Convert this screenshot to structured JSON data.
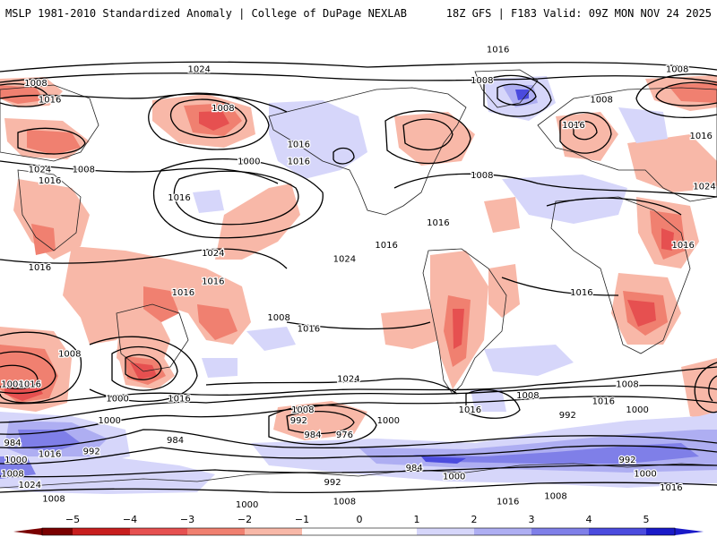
{
  "header": {
    "title_left": "MSLP 1981-2010 Standardized Anomaly | College of DuPage NEXLAB",
    "title_right": "18Z GFS | F183 Valid: 09Z MON NOV 24 2025"
  },
  "map": {
    "contour_unit": "hPa",
    "isobar_labels": [
      {
        "value": "1016",
        "lon": 70,
        "lat": 80
      },
      {
        "value": "1024",
        "lon": -80,
        "lat": 73
      },
      {
        "value": "1008",
        "lon": -162,
        "lat": 68
      },
      {
        "value": "1016",
        "lon": -155,
        "lat": 62
      },
      {
        "value": "1008",
        "lon": -68,
        "lat": 59
      },
      {
        "value": "1000",
        "lon": -55,
        "lat": 40
      },
      {
        "value": "1016",
        "lon": -30,
        "lat": 46
      },
      {
        "value": "1016",
        "lon": -30,
        "lat": 40
      },
      {
        "value": "1016",
        "lon": -90,
        "lat": 27
      },
      {
        "value": "1024",
        "lon": -160,
        "lat": 37
      },
      {
        "value": "1008",
        "lon": -138,
        "lat": 37
      },
      {
        "value": "1016",
        "lon": -155,
        "lat": 33
      },
      {
        "value": "1016",
        "lon": -160,
        "lat": 2
      },
      {
        "value": "1024",
        "lon": -73,
        "lat": 7
      },
      {
        "value": "1016",
        "lon": -73,
        "lat": -3
      },
      {
        "value": "1024",
        "lon": -7,
        "lat": 5
      },
      {
        "value": "1016",
        "lon": 14,
        "lat": 10
      },
      {
        "value": "1016",
        "lon": 40,
        "lat": 18
      },
      {
        "value": "1008",
        "lon": 62,
        "lat": 35
      },
      {
        "value": "1016",
        "lon": 108,
        "lat": 53
      },
      {
        "value": "1008",
        "lon": 122,
        "lat": 62
      },
      {
        "value": "1008",
        "lon": 160,
        "lat": 73
      },
      {
        "value": "1016",
        "lon": 172,
        "lat": 49
      },
      {
        "value": "1024",
        "lon": 175,
        "lat": 31
      },
      {
        "value": "1016",
        "lon": 163,
        "lat": 10
      },
      {
        "value": "1008",
        "lon": 62,
        "lat": 69
      },
      {
        "value": "1016",
        "lon": 112,
        "lat": -7
      },
      {
        "value": "1008",
        "lon": -40,
        "lat": -16
      },
      {
        "value": "1016",
        "lon": -88,
        "lat": -7
      },
      {
        "value": "1016",
        "lon": -25,
        "lat": -20
      },
      {
        "value": "1008",
        "lon": -145,
        "lat": -29
      },
      {
        "value": "1008",
        "lon": -180,
        "lat": -40
      },
      {
        "value": "1016",
        "lon": -165,
        "lat": -40
      },
      {
        "value": "1000",
        "lon": -121,
        "lat": -45
      },
      {
        "value": "1016",
        "lon": -90,
        "lat": -45
      },
      {
        "value": "1008",
        "lon": -28,
        "lat": -49
      },
      {
        "value": "1024",
        "lon": -5,
        "lat": -38
      },
      {
        "value": "992",
        "lon": -30,
        "lat": -53
      },
      {
        "value": "1000",
        "lon": -125,
        "lat": -53
      },
      {
        "value": "1000",
        "lon": 15,
        "lat": -53
      },
      {
        "value": "1016",
        "lon": 56,
        "lat": -49
      },
      {
        "value": "1008",
        "lon": 85,
        "lat": -44
      },
      {
        "value": "1016",
        "lon": 123,
        "lat": -46
      },
      {
        "value": "1008",
        "lon": 135,
        "lat": -40
      },
      {
        "value": "1000",
        "lon": 140,
        "lat": -49
      },
      {
        "value": "992",
        "lon": 105,
        "lat": -51
      },
      {
        "value": "984",
        "lon": -178,
        "lat": -61
      },
      {
        "value": "1000",
        "lon": -172,
        "lat": -67
      },
      {
        "value": "1008",
        "lon": -177,
        "lat": -72
      },
      {
        "value": "1016",
        "lon": -155,
        "lat": -65
      },
      {
        "value": "1024",
        "lon": -165,
        "lat": -76
      },
      {
        "value": "1008",
        "lon": -153,
        "lat": -81
      },
      {
        "value": "992",
        "lon": -134,
        "lat": -64
      },
      {
        "value": "984",
        "lon": -92,
        "lat": -60
      },
      {
        "value": "984",
        "lon": -23,
        "lat": -58
      },
      {
        "value": "976",
        "lon": -7,
        "lat": -58
      },
      {
        "value": "992",
        "lon": -13,
        "lat": -75
      },
      {
        "value": "984",
        "lon": 28,
        "lat": -70
      },
      {
        "value": "1000",
        "lon": 48,
        "lat": -73
      },
      {
        "value": "1000",
        "lon": -56,
        "lat": -83
      },
      {
        "value": "1008",
        "lon": -7,
        "lat": -82
      },
      {
        "value": "1016",
        "lon": 75,
        "lat": -82
      },
      {
        "value": "1008",
        "lon": 99,
        "lat": -80
      },
      {
        "value": "992",
        "lon": 135,
        "lat": -67
      },
      {
        "value": "1000",
        "lon": 144,
        "lat": -72
      },
      {
        "value": "1016",
        "lon": 157,
        "lat": -77
      }
    ]
  },
  "legend": {
    "ticks": [
      "−5",
      "−4",
      "−3",
      "−2",
      "−1",
      "0",
      "1",
      "2",
      "3",
      "4",
      "5"
    ],
    "colors": {
      "neg5": "#7a0000",
      "neg4": "#c81e1e",
      "neg3": "#e65050",
      "neg2": "#f08070",
      "neg1": "#f8b8a8",
      "zero": "#ffffff",
      "pos1": "#d6d6fa",
      "pos2": "#aeaef2",
      "pos3": "#7f7fe8",
      "pos4": "#4b4bde",
      "pos5": "#1a1ac8"
    }
  }
}
